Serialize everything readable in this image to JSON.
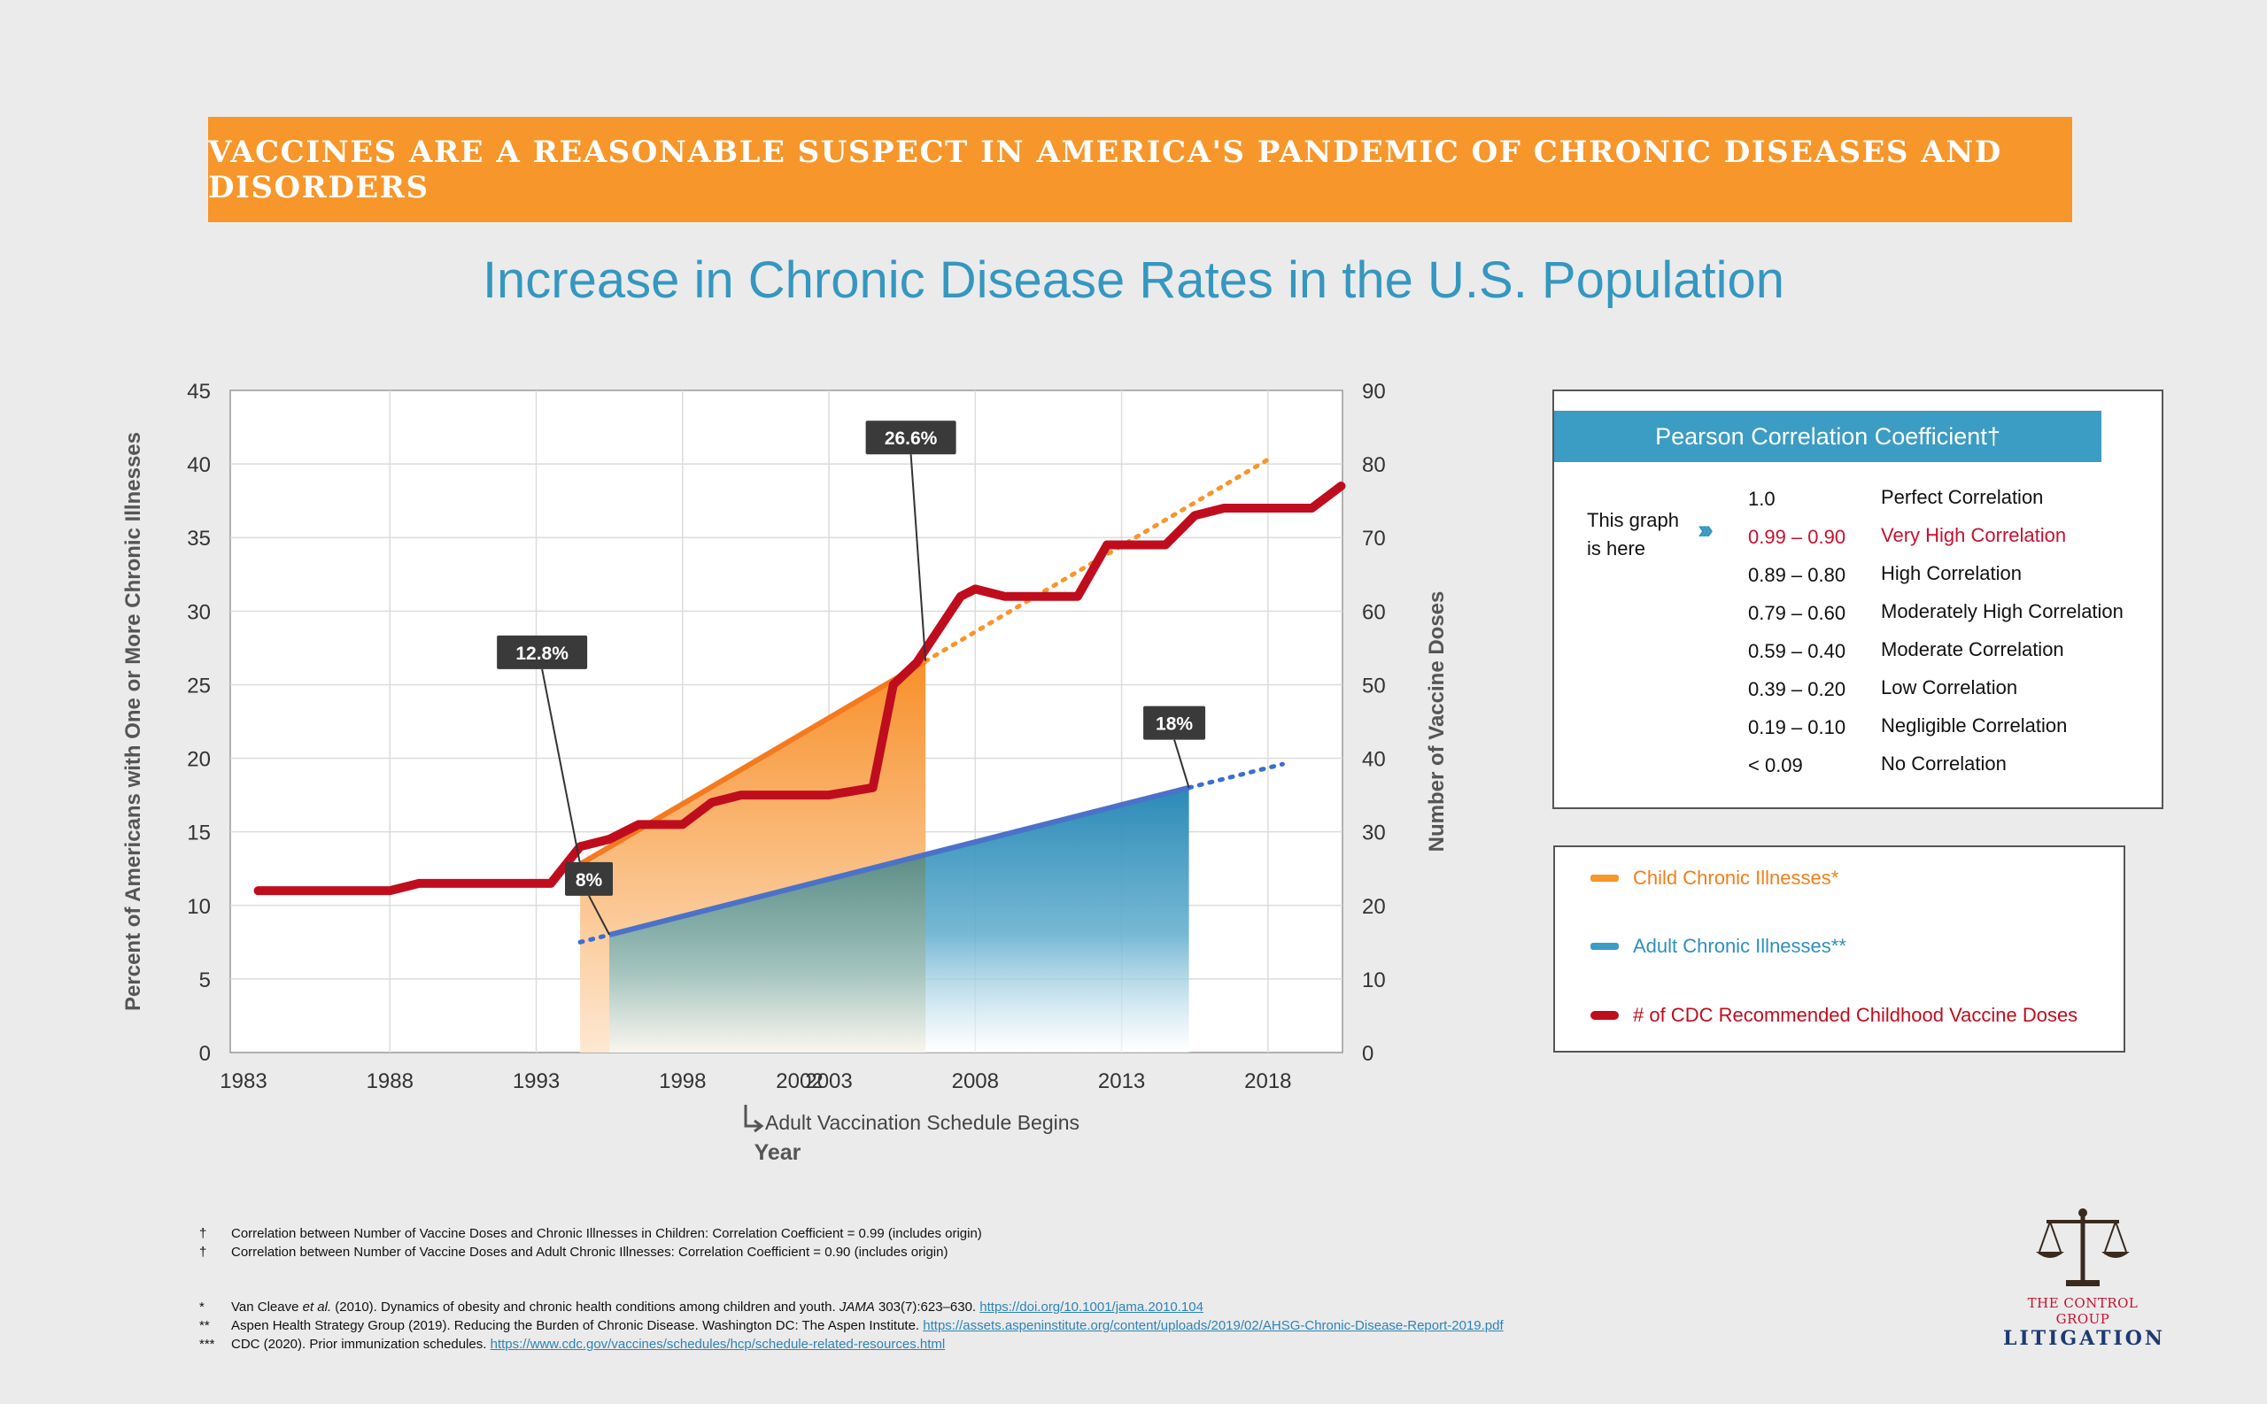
{
  "banner": {
    "text": "VACCINES ARE A REASONABLE SUSPECT IN AMERICA'S PANDEMIC OF CHRONIC DISEASES AND DISORDERS"
  },
  "colors": {
    "banner": "#f7962a",
    "title": "#3597c0",
    "child": "#f7962a",
    "adult": "#3b8fc8",
    "vaccine": "#c00d1e"
  },
  "chart_data": {
    "type": "area",
    "title": "Increase in Chronic Disease Rates in the U.S. Population",
    "xlabel": "Year",
    "ylabel_left": "Percent of Americans with One or More Chronic Illnesses",
    "ylabel_right": "Number of Vaccine Doses",
    "xlim": [
      1983,
      2021
    ],
    "ylim_left": [
      0,
      45
    ],
    "ylim_right": [
      0,
      90
    ],
    "x_ticks": [
      1983,
      1988,
      1993,
      1998,
      2002,
      2003,
      2008,
      2013,
      2018
    ],
    "y_ticks_left": [
      0,
      5,
      10,
      15,
      20,
      25,
      30,
      35,
      40,
      45
    ],
    "y_ticks_right": [
      0,
      10,
      20,
      30,
      40,
      50,
      60,
      70,
      80,
      90
    ],
    "grid": true,
    "annotation_adult_schedule": "Adult Vaccination Schedule Begins",
    "series": [
      {
        "name": "Child Chronic Illnesses*",
        "axis": "left",
        "color": "#f7962a",
        "x": [
          1994.5,
          2006.3
        ],
        "y": [
          12.8,
          26.6
        ],
        "trend_x": [
          2006.3,
          2018
        ],
        "trend_y": [
          26.6,
          40.3
        ]
      },
      {
        "name": "Adult Chronic Illnesses**",
        "axis": "left",
        "color": "#3b8fc8",
        "x": [
          1995.5,
          2015.3
        ],
        "y": [
          8,
          18
        ],
        "trend_before_x": [
          1994.5,
          1995.5
        ],
        "trend_before_y": [
          7.5,
          8
        ],
        "trend_x": [
          2015.3,
          2018.5
        ],
        "trend_y": [
          18,
          19.6
        ]
      },
      {
        "name": "# of CDC Recommended Childhood Vaccine Doses",
        "axis": "right",
        "color": "#c00d1e",
        "x": [
          1983.5,
          1988,
          1989,
          1993.5,
          1994.5,
          1995.5,
          1996.5,
          1998,
          1999,
          2000,
          2001,
          2002,
          2003,
          2004.5,
          2005.2,
          2006,
          2007,
          2007.5,
          2008,
          2009,
          2010,
          2011.5,
          2012.5,
          2013,
          2014.5,
          2015.5,
          2016.5,
          2017.5,
          2018.5,
          2019.5,
          2020.5
        ],
        "y": [
          22,
          22,
          23,
          23,
          28,
          29,
          31,
          31,
          34,
          35,
          35,
          35,
          35,
          36,
          50,
          53,
          59,
          62,
          63,
          62,
          62,
          62,
          69,
          69,
          69,
          73,
          74,
          74,
          74,
          74,
          77
        ]
      }
    ],
    "callouts": [
      {
        "text": "12.8%"
      },
      {
        "text": "26.6%"
      },
      {
        "text": "8%"
      },
      {
        "text": "18%"
      }
    ]
  },
  "pearson": {
    "title": "Pearson Correlation Coefficient†",
    "this_graph_line1": "This graph",
    "this_graph_line2": "is here",
    "marker": "›››",
    "rows": [
      {
        "range": "1.0",
        "label": "Perfect Correlation"
      },
      {
        "range": "0.99 – 0.90",
        "label": "Very High Correlation"
      },
      {
        "range": "0.89 – 0.80",
        "label": "High Correlation"
      },
      {
        "range": "0.79 – 0.60",
        "label": "Moderately High Correlation"
      },
      {
        "range": "0.59 – 0.40",
        "label": "Moderate Correlation"
      },
      {
        "range": "0.39 – 0.20",
        "label": "Low Correlation"
      },
      {
        "range": "0.19 – 0.10",
        "label": "Negligible Correlation"
      },
      {
        "range": "< 0.09",
        "label": "No Correlation"
      }
    ]
  },
  "legend": {
    "child": "Child Chronic Illnesses*",
    "adult": "Adult Chronic Illnesses**",
    "vaccine": "# of CDC Recommended Childhood Vaccine Doses"
  },
  "footnotes": {
    "dagger1_mark": "†",
    "dagger1": "Correlation between Number of Vaccine Doses and Chronic Illnesses in Children: Correlation Coefficient = 0.99 (includes origin)",
    "dagger2_mark": "†",
    "dagger2": "Correlation between Number of Vaccine Doses and Adult Chronic Illnesses: Correlation Coefficient = 0.90 (includes origin)",
    "ref1_mark": "*",
    "ref1_a": "Van Cleave ",
    "ref1_etal": "et al.",
    "ref1_b": " (2010). Dynamics of obesity and chronic health conditions among children and youth. ",
    "ref1_journal": "JAMA",
    "ref1_c": " 303(7):623–630. ",
    "ref1_link": "https://doi.org/10.1001/jama.2010.104",
    "ref2_mark": "**",
    "ref2": "Aspen Health Strategy Group (2019). Reducing the Burden of Chronic Disease. Washington DC: The Aspen Institute. ",
    "ref2_link": "https://assets.aspeninstitute.org/content/uploads/2019/02/AHSG-Chronic-Disease-Report-2019.pdf",
    "ref3_mark": "***",
    "ref3": "CDC (2020). Prior immunization schedules. ",
    "ref3_link": "https://www.cdc.gov/vaccines/schedules/hcp/schedule-related-resources.html"
  },
  "logo": {
    "top": "THE CONTROL GROUP",
    "bottom": "LITIGATION",
    "icon": "scales-icon"
  }
}
